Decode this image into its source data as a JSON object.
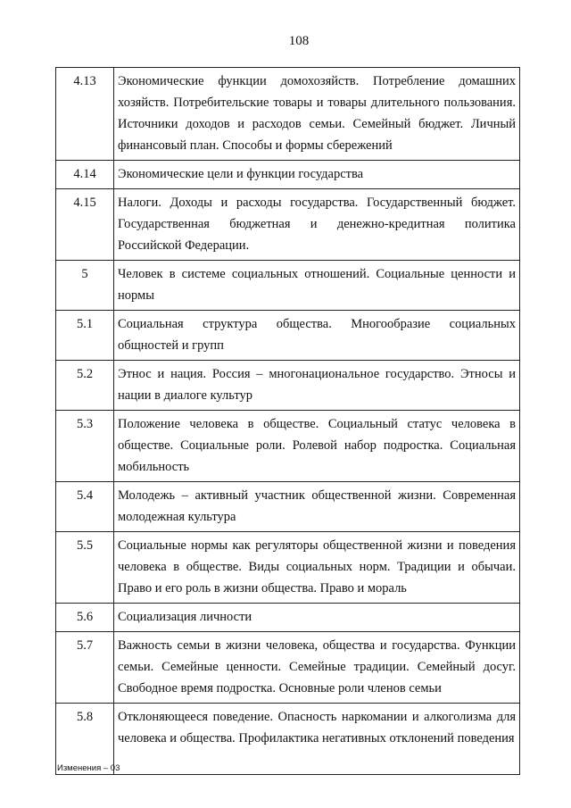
{
  "page_number": "108",
  "table": {
    "rows": [
      [
        "4.13",
        "Экономические функции домохозяйств. Потребление домашних хозяйств. Потребительские товары и товары длительного пользования. Источники доходов и расходов семьи. Семейный бюджет. Личный финансовый план. Способы и формы сбережений"
      ],
      [
        "4.14",
        "Экономические цели и функции государства"
      ],
      [
        "4.15",
        "Налоги. Доходы и расходы государства. Государственный бюджет. Государственная бюджетная и денежно-кредитная политика Российской Федерации."
      ],
      [
        "5",
        "Человек в системе социальных отношений. Социальные ценности и нормы"
      ],
      [
        "5.1",
        "Социальная структура общества. Многообразие социальных общностей и групп"
      ],
      [
        "5.2",
        "Этнос и нация. Россия – многонациональное государство. Этносы и нации в диалоге культур"
      ],
      [
        "5.3",
        "Положение человека в обществе. Социальный статус человека в обществе. Социальные роли. Ролевой набор подростка. Социальная мобильность"
      ],
      [
        "5.4",
        "Молодежь – активный участник общественной жизни. Современная молодежная культура"
      ],
      [
        "5.5",
        "Социальные нормы как регуляторы общественной жизни и поведения человека в обществе. Виды социальных норм. Традиции и обычаи. Право и его роль в жизни общества. Право и мораль"
      ],
      [
        "5.6",
        "Социализация личности"
      ],
      [
        "5.7",
        "Важность семьи в жизни человека, общества и государства. Функции семьи. Семейные ценности. Семейные традиции. Семейный досуг. Свободное время подростка. Основные роли членов семьи"
      ],
      [
        "5.8",
        "Отклоняющееся поведение. Опасность наркомании и алкоголизма для человека и общества. Профилактика негативных отклонений поведения"
      ]
    ]
  },
  "footer": "Изменения – 03"
}
